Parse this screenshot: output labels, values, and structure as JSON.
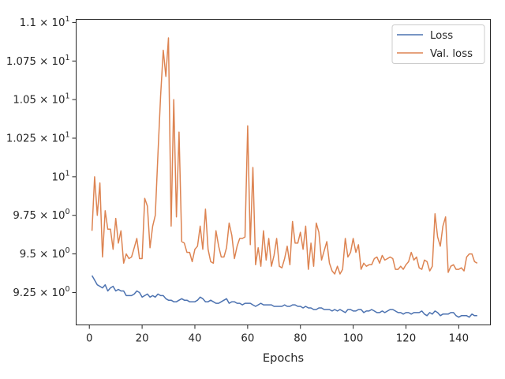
{
  "chart_data": {
    "type": "line",
    "xlabel": "Epochs",
    "ylabel": "",
    "title": "",
    "xlim": [
      -5,
      152
    ],
    "ylim": [
      9.04,
      11.02
    ],
    "x_ticks": [
      0,
      20,
      40,
      60,
      80,
      100,
      120,
      140
    ],
    "y_ticks": [
      {
        "value": 9.25,
        "mantissa": "9.25",
        "times": "×",
        "base": "10",
        "exp": "0"
      },
      {
        "value": 9.5,
        "mantissa": "9.5",
        "times": "×",
        "base": "10",
        "exp": "0"
      },
      {
        "value": 9.75,
        "mantissa": "9.75",
        "times": "×",
        "base": "10",
        "exp": "0"
      },
      {
        "value": 10.0,
        "mantissa": "",
        "times": "",
        "base": "10",
        "exp": "1"
      },
      {
        "value": 10.25,
        "mantissa": "1.025",
        "times": "×",
        "base": "10",
        "exp": "1"
      },
      {
        "value": 10.5,
        "mantissa": "1.05",
        "times": "×",
        "base": "10",
        "exp": "1"
      },
      {
        "value": 10.75,
        "mantissa": "1.075",
        "times": "×",
        "base": "10",
        "exp": "1"
      },
      {
        "value": 11.0,
        "mantissa": "1.1",
        "times": "×",
        "base": "10",
        "exp": "1"
      }
    ],
    "grid": false,
    "legend_position": "top-right",
    "x": [
      1,
      2,
      3,
      4,
      5,
      6,
      7,
      8,
      9,
      10,
      11,
      12,
      13,
      14,
      15,
      16,
      17,
      18,
      19,
      20,
      21,
      22,
      23,
      24,
      25,
      26,
      27,
      28,
      29,
      30,
      31,
      32,
      33,
      34,
      35,
      36,
      37,
      38,
      39,
      40,
      41,
      42,
      43,
      44,
      45,
      46,
      47,
      48,
      49,
      50,
      51,
      52,
      53,
      54,
      55,
      56,
      57,
      58,
      59,
      60,
      61,
      62,
      63,
      64,
      65,
      66,
      67,
      68,
      69,
      70,
      71,
      72,
      73,
      74,
      75,
      76,
      77,
      78,
      79,
      80,
      81,
      82,
      83,
      84,
      85,
      86,
      87,
      88,
      89,
      90,
      91,
      92,
      93,
      94,
      95,
      96,
      97,
      98,
      99,
      100,
      101,
      102,
      103,
      104,
      105,
      106,
      107,
      108,
      109,
      110,
      111,
      112,
      113,
      114,
      115,
      116,
      117,
      118,
      119,
      120,
      121,
      122,
      123,
      124,
      125,
      126,
      127,
      128,
      129,
      130,
      131,
      132,
      133,
      134,
      135,
      136,
      137,
      138,
      139,
      140,
      141,
      142,
      143,
      144,
      145,
      146,
      147
    ],
    "series": [
      {
        "name": "Loss",
        "color": "#4c72b0",
        "values": [
          9.36,
          9.33,
          9.3,
          9.29,
          9.28,
          9.3,
          9.26,
          9.28,
          9.29,
          9.26,
          9.27,
          9.26,
          9.26,
          9.23,
          9.23,
          9.23,
          9.24,
          9.26,
          9.25,
          9.22,
          9.23,
          9.24,
          9.22,
          9.23,
          9.22,
          9.24,
          9.23,
          9.23,
          9.21,
          9.2,
          9.2,
          9.19,
          9.19,
          9.2,
          9.21,
          9.2,
          9.2,
          9.19,
          9.19,
          9.19,
          9.2,
          9.22,
          9.21,
          9.19,
          9.19,
          9.2,
          9.19,
          9.18,
          9.18,
          9.19,
          9.2,
          9.21,
          9.18,
          9.19,
          9.19,
          9.18,
          9.18,
          9.17,
          9.18,
          9.18,
          9.18,
          9.17,
          9.16,
          9.17,
          9.18,
          9.17,
          9.17,
          9.17,
          9.17,
          9.16,
          9.16,
          9.16,
          9.16,
          9.17,
          9.16,
          9.16,
          9.17,
          9.17,
          9.16,
          9.16,
          9.15,
          9.16,
          9.15,
          9.15,
          9.14,
          9.14,
          9.15,
          9.15,
          9.14,
          9.14,
          9.14,
          9.13,
          9.14,
          9.13,
          9.14,
          9.13,
          9.12,
          9.14,
          9.14,
          9.13,
          9.13,
          9.14,
          9.14,
          9.12,
          9.13,
          9.13,
          9.14,
          9.13,
          9.12,
          9.12,
          9.13,
          9.12,
          9.13,
          9.14,
          9.14,
          9.13,
          9.12,
          9.12,
          9.11,
          9.12,
          9.12,
          9.11,
          9.12,
          9.12,
          9.12,
          9.13,
          9.11,
          9.1,
          9.12,
          9.11,
          9.13,
          9.12,
          9.1,
          9.11,
          9.11,
          9.11,
          9.12,
          9.12,
          9.1,
          9.09,
          9.1,
          9.1,
          9.1,
          9.09,
          9.11,
          9.1,
          9.1
        ]
      },
      {
        "name": "Val. loss",
        "color": "#dd8452",
        "values": [
          9.65,
          10.0,
          9.75,
          9.96,
          9.48,
          9.78,
          9.66,
          9.66,
          9.53,
          9.73,
          9.57,
          9.65,
          9.44,
          9.5,
          9.47,
          9.48,
          9.54,
          9.6,
          9.47,
          9.47,
          9.86,
          9.81,
          9.54,
          9.68,
          9.75,
          10.15,
          10.52,
          10.82,
          10.65,
          10.9,
          9.68,
          10.5,
          9.74,
          10.29,
          9.58,
          9.57,
          9.51,
          9.51,
          9.45,
          9.53,
          9.55,
          9.68,
          9.53,
          9.79,
          9.53,
          9.45,
          9.44,
          9.65,
          9.55,
          9.48,
          9.48,
          9.54,
          9.7,
          9.62,
          9.47,
          9.55,
          9.6,
          9.6,
          9.61,
          10.33,
          9.56,
          10.06,
          9.43,
          9.54,
          9.42,
          9.65,
          9.46,
          9.6,
          9.42,
          9.49,
          9.6,
          9.42,
          9.41,
          9.47,
          9.55,
          9.43,
          9.71,
          9.57,
          9.57,
          9.64,
          9.53,
          9.68,
          9.4,
          9.57,
          9.42,
          9.7,
          9.64,
          9.46,
          9.52,
          9.58,
          9.44,
          9.39,
          9.37,
          9.42,
          9.37,
          9.4,
          9.6,
          9.48,
          9.51,
          9.6,
          9.51,
          9.56,
          9.4,
          9.44,
          9.42,
          9.43,
          9.43,
          9.47,
          9.48,
          9.44,
          9.49,
          9.46,
          9.47,
          9.48,
          9.47,
          9.4,
          9.4,
          9.42,
          9.4,
          9.43,
          9.45,
          9.51,
          9.46,
          9.48,
          9.41,
          9.4,
          9.46,
          9.45,
          9.39,
          9.42,
          9.76,
          9.61,
          9.55,
          9.68,
          9.74,
          9.38,
          9.42,
          9.43,
          9.4,
          9.4,
          9.41,
          9.39,
          9.48,
          9.5,
          9.5,
          9.45,
          9.44
        ]
      }
    ]
  }
}
